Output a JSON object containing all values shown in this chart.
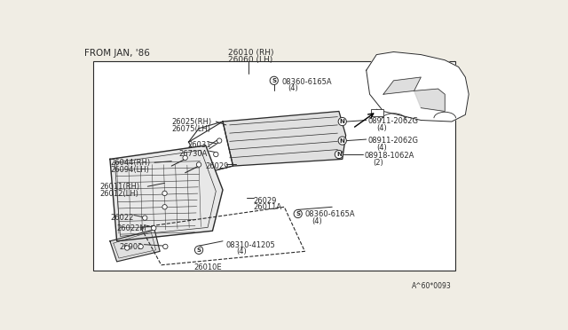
{
  "bg_color": "#f0ede4",
  "line_color": "#2a2a2a",
  "text_color": "#2a2a2a",
  "title_text": "FROM JAN, '86",
  "part_rh": "26010 (RH)",
  "part_lh": "26060 (LH)",
  "footer": "A^60*0093",
  "fig_w": 6.4,
  "fig_h": 3.72,
  "dpi": 100
}
